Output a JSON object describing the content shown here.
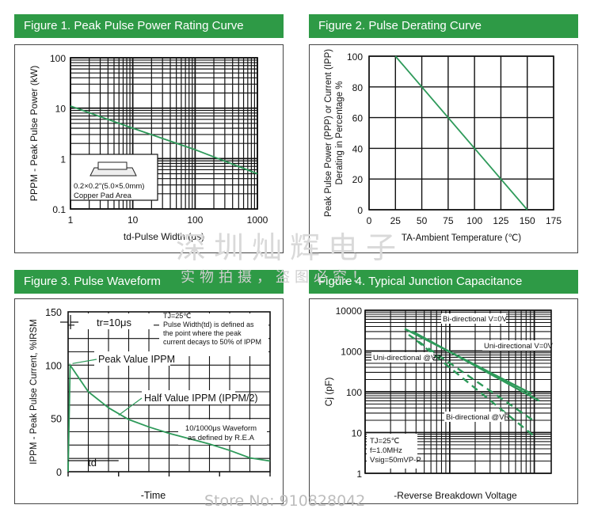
{
  "watermark": {
    "line1": "深圳灿辉电子",
    "line2": "实物拍摄，盗图必究！",
    "store": "Store No: 910828042"
  },
  "panels": [
    {
      "title": "Figure 1. Peak Pulse Power Rating Curve"
    },
    {
      "title": "Figure 2. Pulse Derating Curve"
    },
    {
      "title": "Figure 3. Pulse Waveform"
    },
    {
      "title": "Figure 4. Typical Junction Capacitance"
    }
  ],
  "colors": {
    "header": "#2e9a46",
    "curve": "#2e9a5a",
    "grid": "#111111"
  },
  "chart_data": [
    {
      "type": "line",
      "title": "Figure 1. Peak Pulse Power Rating Curve",
      "xlabel": "td-Pulse Width (μs)",
      "ylabel": "PPPM - Peak Pulse Power (kW)",
      "xscale": "log",
      "yscale": "log",
      "xlim": [
        1,
        1000
      ],
      "ylim": [
        0.1,
        100
      ],
      "xticks": [
        "1",
        "10",
        "100",
        "1000"
      ],
      "yticks": [
        "100",
        "10",
        "1",
        "0.1"
      ],
      "grid": true,
      "series": [
        {
          "x": [
            1,
            10,
            100,
            1000
          ],
          "y": [
            11,
            4,
            1.5,
            0.5
          ]
        }
      ],
      "annotation": [
        "0.2×0.2\"(5.0×5.0mm)",
        "Copper Pad Area"
      ]
    },
    {
      "type": "line",
      "title": "Figure 2. Pulse Derating Curve",
      "xlabel": "TA-Ambient Temperature (℃)",
      "ylabel": [
        "Peak Pulse Power (PPP) or Current (IPP)",
        "Derating in Percentage %"
      ],
      "xlim": [
        0,
        175
      ],
      "ylim": [
        0,
        100
      ],
      "xticks": [
        "0",
        "25",
        "50",
        "75",
        "100",
        "125",
        "150",
        "175"
      ],
      "yticks": [
        "100",
        "80",
        "60",
        "40",
        "20",
        "0"
      ],
      "grid": true,
      "series": [
        {
          "x": [
            25,
            150
          ],
          "y": [
            100,
            0
          ]
        }
      ]
    },
    {
      "type": "line",
      "title": "Figure 3. Pulse Waveform",
      "xlabel": "-Time",
      "ylabel": "IPPM - Peak Pulse Current, %IRSM",
      "ylim": [
        0,
        150
      ],
      "yticks": [
        "150",
        "100",
        "50",
        "0"
      ],
      "grid": true,
      "series": [
        {
          "x": [
            0,
            0.1,
            1,
            2,
            3,
            4,
            5,
            6,
            7,
            8,
            9,
            10
          ],
          "y": [
            0,
            100,
            75,
            60,
            49,
            42,
            36,
            31,
            26,
            20,
            13,
            10
          ]
        }
      ],
      "annotations": {
        "tr": "tr=10μs",
        "conditions": [
          "TJ=25℃",
          "Pulse Width(td) is defined as",
          "the point where the peak",
          "current decays to 50% of IPPM"
        ],
        "peak": "Peak Value IPPM",
        "half": "Half Value IPPM (IPPM/2)",
        "waveform": [
          "10/1000μs Waveform",
          "as defined by R.E.A"
        ],
        "td": "td"
      }
    },
    {
      "type": "line",
      "title": "Figure 4. Typical Junction Capacitance",
      "xlabel": "-Reverse Breakdown Voltage",
      "ylabel": "Cj (pF)",
      "yscale": "log",
      "ylim": [
        1,
        10000
      ],
      "yticks": [
        "10000",
        "1000",
        "100",
        "10",
        "1"
      ],
      "grid": true,
      "series": [
        {
          "name": "Bi-directional V=0V"
        },
        {
          "name": "Uni-directional V=0V"
        },
        {
          "name": "Uni-directional @VR"
        },
        {
          "name": "Bi-directional @VR"
        }
      ],
      "conditions": [
        "TJ=25℃",
        "f=1.0MHz",
        "Vsig=50mVP-P"
      ]
    }
  ]
}
